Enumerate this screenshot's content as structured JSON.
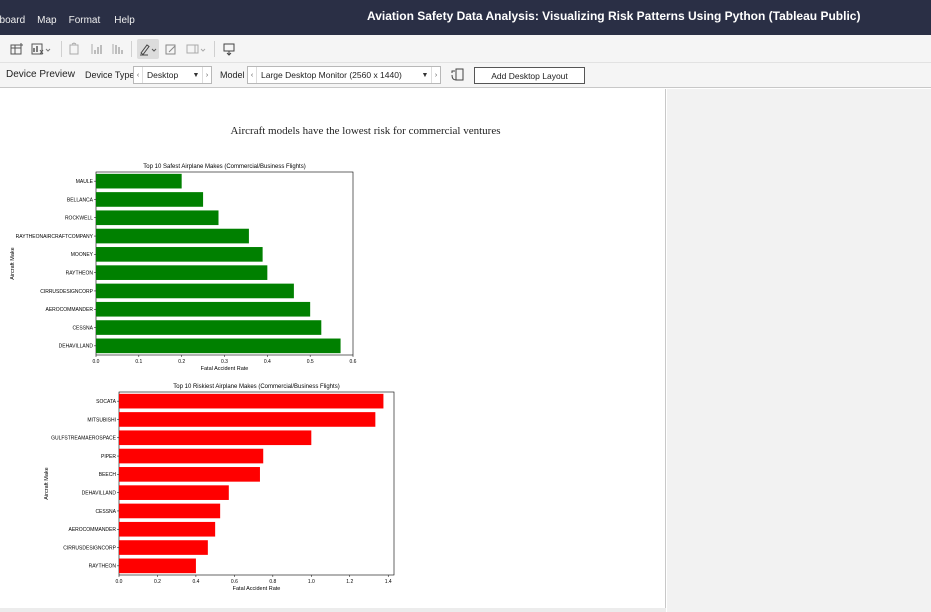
{
  "app": {
    "title": "Aviation Safety Data Analysis: Visualizing Risk Patterns Using Python (Tableau Public)",
    "menu": [
      "nboard",
      "Map",
      "Format",
      "Help"
    ]
  },
  "toolbar": {
    "icons": [
      "new-worksheet-icon",
      "clear-sheet-icon",
      "swap-rows-columns-icon",
      "sort-ascending-icon",
      "sort-descending-icon",
      "highlight-icon",
      "label-marks-icon",
      "fit-icon",
      "presentation-mode-icon"
    ]
  },
  "device_bar": {
    "title": "Device Preview",
    "device_type_label": "Device Type",
    "device_type_value": "Desktop",
    "model_label": "Model",
    "model_value": "Large Desktop Monitor (2560 x 1440)",
    "add_layout_button": "Add Desktop Layout"
  },
  "dashboard": {
    "title": "Aircraft models have the lowest risk for commercial ventures"
  },
  "chart_data": [
    {
      "type": "bar",
      "orientation": "horizontal",
      "title": "Top 10 Safest Airplane Makes (Commercial/Business Flights)",
      "xlabel": "Fatal Accident Rate",
      "ylabel": "Aircraft Make",
      "xlim": [
        0,
        0.6
      ],
      "xticks": [
        "0.0",
        "0.1",
        "0.2",
        "0.3",
        "0.4",
        "0.5",
        "0.6"
      ],
      "color": "#008000",
      "categories": [
        "MAULE",
        "BELLANCA",
        "ROCKWELL",
        "RAYTHEONAIRCRAFTCOMPANY",
        "MOONEY",
        "RAYTHEON",
        "CIRRUSDESIGNCORP",
        "AEROCOMMANDER",
        "CESSNA",
        "DEHAVILLAND"
      ],
      "values": [
        0.2,
        0.25,
        0.286,
        0.357,
        0.389,
        0.4,
        0.462,
        0.5,
        0.526,
        0.571
      ]
    },
    {
      "type": "bar",
      "orientation": "horizontal",
      "title": "Top 10 Riskiest Airplane Makes (Commercial/Business Flights)",
      "xlabel": "Fatal Accident Rate",
      "ylabel": "Aircraft Make",
      "xlim": [
        0,
        1.43
      ],
      "xticks": [
        "0.0",
        "0.2",
        "0.4",
        "0.6",
        "0.8",
        "1.0",
        "1.2",
        "1.4"
      ],
      "color": "#ff0000",
      "categories": [
        "SOCATA",
        "MITSUBISHI",
        "GULFSTREAMAEROSPACE",
        "PIPER",
        "BEECH",
        "DEHAVILLAND",
        "CESSNA",
        "AEROCOMMANDER",
        "CIRRUSDESIGNCORP",
        "RAYTHEON"
      ],
      "values": [
        1.375,
        1.333,
        1.0,
        0.75,
        0.733,
        0.571,
        0.526,
        0.5,
        0.462,
        0.4
      ]
    }
  ]
}
